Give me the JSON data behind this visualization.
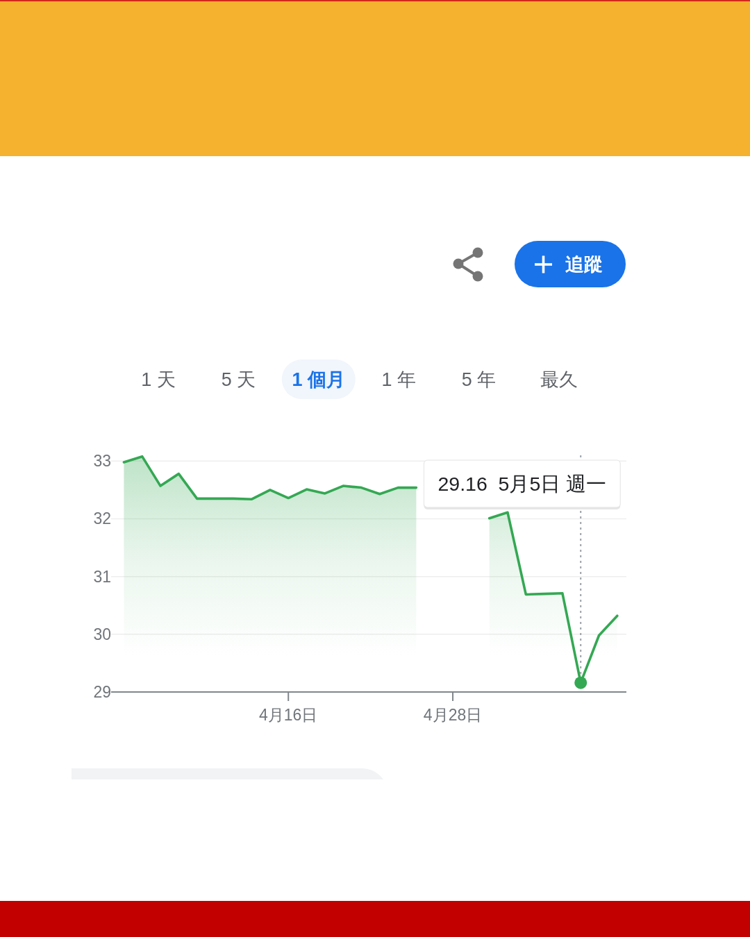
{
  "chart_data": {
    "type": "area",
    "categories": [
      null,
      null,
      null,
      null,
      null,
      null,
      null,
      null,
      null,
      "4月16日",
      null,
      null,
      null,
      null,
      null,
      null,
      null,
      null,
      "4月28日",
      null,
      null,
      null,
      null,
      null,
      null,
      null,
      null,
      null
    ],
    "series": [
      {
        "color": "#34a853",
        "values": [
          32.98,
          33.08,
          32.57,
          32.78,
          32.35,
          32.35,
          32.35,
          32.34,
          32.5,
          32.36,
          32.51,
          32.44,
          32.57,
          32.54,
          32.43,
          32.54,
          32.54,
          null,
          null,
          null,
          32.01,
          32.11,
          30.69,
          30.7,
          30.71,
          29.16,
          29.98,
          30.32
        ]
      },
      {
        "type": "scatter",
        "color": "#34a853",
        "marker": "circle",
        "values": [
          null,
          null,
          null,
          null,
          null,
          null,
          null,
          null,
          null,
          null,
          null,
          null,
          null,
          null,
          null,
          null,
          null,
          null,
          null,
          null,
          null,
          null,
          null,
          null,
          null,
          29.16,
          null,
          null
        ]
      }
    ],
    "ylim": [
      29,
      33.1
    ],
    "yticks": [
      29,
      30,
      31,
      32,
      33
    ],
    "grid": "y",
    "annotations": [
      "追蹤",
      "1 天",
      "5 天",
      "1 個月",
      "1 年",
      "5 年",
      "最久",
      "29.16  5月5日 週一"
    ]
  }
}
